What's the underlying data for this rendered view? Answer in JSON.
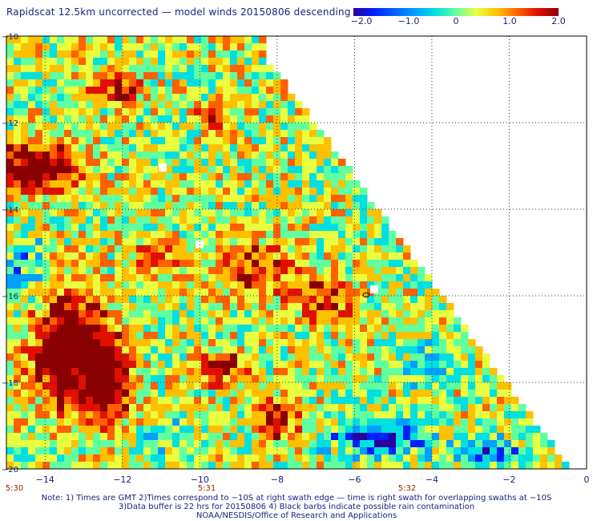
{
  "title": "Rapidscat 12.5km uncorrected — model winds 20150806 descending",
  "colorbar": {
    "tick_labels": [
      "−2.0",
      "−1.0",
      "0",
      "1.0",
      "2.0"
    ],
    "colors": [
      "#2a00a0",
      "#0020ff",
      "#00a0ff",
      "#00e0e0",
      "#60ffa0",
      "#e8ff40",
      "#ffc000",
      "#ff6000",
      "#e01000",
      "#8a0000"
    ]
  },
  "axes": {
    "x_ticks": [
      "−14",
      "−12",
      "−10",
      "−8",
      "−6",
      "−4",
      "−2",
      "0"
    ],
    "y_ticks": [
      "−10",
      "−12",
      "−14",
      "−16",
      "−18",
      "−20"
    ],
    "lon_range": [
      -15,
      0
    ],
    "lat_range": [
      -20,
      -10
    ]
  },
  "time_labels": [
    "5:30",
    "5:31",
    "5:32"
  ],
  "notes": [
    "Note: 1) Times are GMT 2)Times correspond to −10S at right swath edge — time is right swath for overlapping swaths at −10S",
    "3)Data buffer is 22 hrs for 20150806 4) Black barbs indicate possible rain contamination",
    "NOAA/NESDIS/Office of Research and Applications"
  ],
  "colors": {
    "text": "#1a237e",
    "time_label": "#8b2500",
    "grid": "#333333"
  }
}
